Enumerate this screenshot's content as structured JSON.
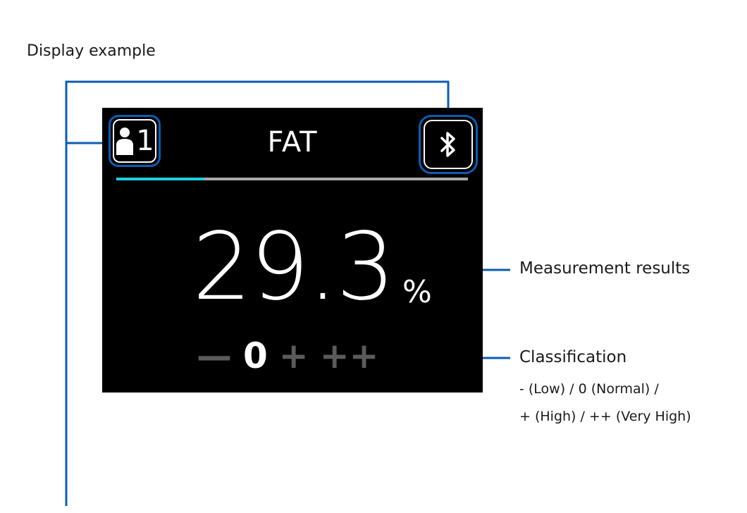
{
  "caption": "Display example",
  "display": {
    "user_number": "1",
    "title": "FAT",
    "progress_fraction": 0.25,
    "value": "29.3",
    "unit": "%",
    "classes": [
      "—",
      "0",
      "+",
      "++"
    ],
    "active_class": "0",
    "icons": {
      "user": "person-icon",
      "bluetooth": "bluetooth-icon"
    }
  },
  "annotations": {
    "measurement": "Measurement results",
    "classification": "Classification",
    "classification_note_1": "- (Low) / 0 (Normal) /",
    "classification_note_2": "+ (High) / ++ (Very High)"
  },
  "colors": {
    "leader_line": "#0b5db4",
    "progress_fill": "#1ed0dc",
    "inactive_class": "#5b5b5b",
    "screen_bg": "#000000"
  }
}
